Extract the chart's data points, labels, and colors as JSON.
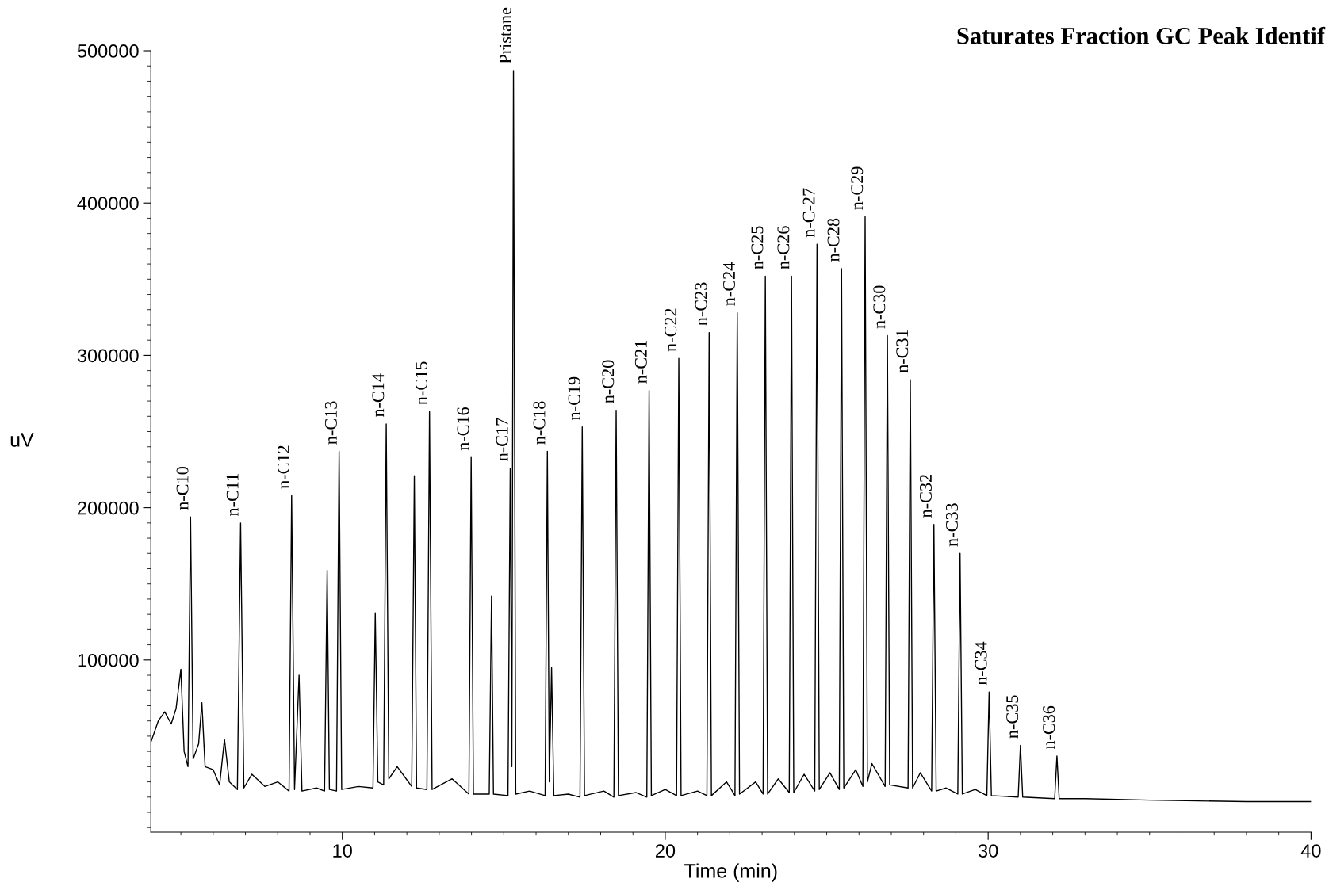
{
  "chart_data": {
    "type": "line",
    "title": "Saturates Fraction GC Peak Identif",
    "xlabel": "Time (min)",
    "ylabel": "uV",
    "xlim": [
      4.07,
      40
    ],
    "ylim": [
      -13000,
      500000
    ],
    "xticks": [
      10,
      20,
      30,
      40
    ],
    "yticks": [
      100000,
      200000,
      300000,
      400000,
      500000
    ],
    "grid": false,
    "legend": false,
    "marker": "none",
    "line_style": "solid",
    "x": [
      4.07,
      4.3,
      4.5,
      4.7,
      4.85,
      5.0,
      5.1,
      5.22,
      5.3,
      5.38,
      5.55,
      5.65,
      5.75,
      6.0,
      6.2,
      6.35,
      6.5,
      6.75,
      6.85,
      6.95,
      7.2,
      7.6,
      8.0,
      8.35,
      8.43,
      8.52,
      8.66,
      8.75,
      9.2,
      9.45,
      9.53,
      9.6,
      9.82,
      9.9,
      9.98,
      10.5,
      10.95,
      11.02,
      11.1,
      11.28,
      11.36,
      11.44,
      11.7,
      12.15,
      12.23,
      12.3,
      12.62,
      12.7,
      12.78,
      13.4,
      13.92,
      13.99,
      14.06,
      14.55,
      14.62,
      14.68,
      15.13,
      15.2,
      15.25,
      15.3,
      15.37,
      15.8,
      16.28,
      16.35,
      16.41,
      16.48,
      16.55,
      17.0,
      17.36,
      17.43,
      17.5,
      18.1,
      18.41,
      18.48,
      18.55,
      19.1,
      19.43,
      19.5,
      19.57,
      20.0,
      20.35,
      20.42,
      20.49,
      21.0,
      21.29,
      21.36,
      21.43,
      21.9,
      22.16,
      22.23,
      22.3,
      22.8,
      23.03,
      23.1,
      23.17,
      23.5,
      23.84,
      23.91,
      23.98,
      24.3,
      24.63,
      24.7,
      24.77,
      25.1,
      25.39,
      25.46,
      25.53,
      25.9,
      26.12,
      26.19,
      26.26,
      26.4,
      26.81,
      26.88,
      26.95,
      27.52,
      27.59,
      27.66,
      27.9,
      28.25,
      28.32,
      28.39,
      28.7,
      29.06,
      29.13,
      29.2,
      29.6,
      29.96,
      30.03,
      30.1,
      30.93,
      31.0,
      31.07,
      32.06,
      32.13,
      32.2,
      33.0,
      35.0,
      38.0,
      40.0
    ],
    "series": [
      {
        "color": "#000000",
        "values": [
          46000,
          60000,
          66000,
          58000,
          68000,
          94000,
          40000,
          30000,
          194000,
          35000,
          45000,
          72000,
          30000,
          28000,
          18000,
          48000,
          20000,
          15000,
          190000,
          16000,
          25000,
          17000,
          20000,
          14000,
          208000,
          15000,
          90000,
          14000,
          16000,
          14000,
          159000,
          15000,
          14000,
          237000,
          15000,
          17000,
          16000,
          131000,
          20000,
          18000,
          255000,
          22000,
          30000,
          17000,
          221000,
          16000,
          15000,
          263000,
          15000,
          22000,
          12000,
          233000,
          12000,
          12000,
          142000,
          12000,
          11000,
          226000,
          30000,
          487000,
          12000,
          14000,
          11000,
          237000,
          20000,
          95000,
          11000,
          12000,
          10000,
          253000,
          11000,
          14000,
          10000,
          264000,
          11000,
          13000,
          10000,
          277000,
          11000,
          15000,
          11000,
          298000,
          11000,
          14000,
          11000,
          315000,
          11000,
          20000,
          11000,
          328000,
          12000,
          20000,
          12000,
          352000,
          12000,
          22000,
          13000,
          352000,
          13000,
          25000,
          14000,
          373000,
          15000,
          26000,
          15000,
          357000,
          16000,
          28000,
          17000,
          391000,
          20000,
          32000,
          17000,
          313000,
          18000,
          16000,
          284000,
          16000,
          26000,
          14000,
          189000,
          14000,
          16000,
          12000,
          170000,
          12000,
          15000,
          11000,
          79000,
          11000,
          10000,
          44000,
          10000,
          9000,
          37000,
          9000,
          9000,
          8000,
          7000,
          7000
        ]
      }
    ],
    "annotations": [
      {
        "text": "n-C10",
        "x": 5.3,
        "y": 194000
      },
      {
        "text": "n-C11",
        "x": 6.85,
        "y": 190000
      },
      {
        "text": "n-C12",
        "x": 8.43,
        "y": 208000
      },
      {
        "text": "n-C13",
        "x": 9.9,
        "y": 237000
      },
      {
        "text": "n-C14",
        "x": 11.36,
        "y": 255000
      },
      {
        "text": "n-C15",
        "x": 12.7,
        "y": 263000
      },
      {
        "text": "n-C16",
        "x": 13.99,
        "y": 233000
      },
      {
        "text": "n-C17",
        "x": 15.2,
        "y": 226000
      },
      {
        "text": "Pristane",
        "x": 15.3,
        "y": 487000
      },
      {
        "text": "n-C18",
        "x": 16.35,
        "y": 237000
      },
      {
        "text": "n-C19",
        "x": 17.43,
        "y": 253000
      },
      {
        "text": "n-C20",
        "x": 18.48,
        "y": 264000
      },
      {
        "text": "n-C21",
        "x": 19.5,
        "y": 277000
      },
      {
        "text": "n-C22",
        "x": 20.42,
        "y": 298000
      },
      {
        "text": "n-C23",
        "x": 21.36,
        "y": 315000
      },
      {
        "text": "n-C24",
        "x": 22.23,
        "y": 328000
      },
      {
        "text": "n-C25",
        "x": 23.1,
        "y": 352000
      },
      {
        "text": "n-C26",
        "x": 23.91,
        "y": 352000
      },
      {
        "text": "n-C-27",
        "x": 24.7,
        "y": 373000
      },
      {
        "text": "n-C28",
        "x": 25.46,
        "y": 357000
      },
      {
        "text": "n-C29",
        "x": 26.19,
        "y": 391000
      },
      {
        "text": "n-C30",
        "x": 26.88,
        "y": 313000
      },
      {
        "text": "n-C31",
        "x": 27.59,
        "y": 284000
      },
      {
        "text": "n-C32",
        "x": 28.32,
        "y": 189000
      },
      {
        "text": "n-C33",
        "x": 29.13,
        "y": 170000
      },
      {
        "text": "n-C34",
        "x": 30.03,
        "y": 79000
      },
      {
        "text": "n-C35",
        "x": 31.0,
        "y": 44000
      },
      {
        "text": "n-C36",
        "x": 32.13,
        "y": 37000
      }
    ]
  }
}
